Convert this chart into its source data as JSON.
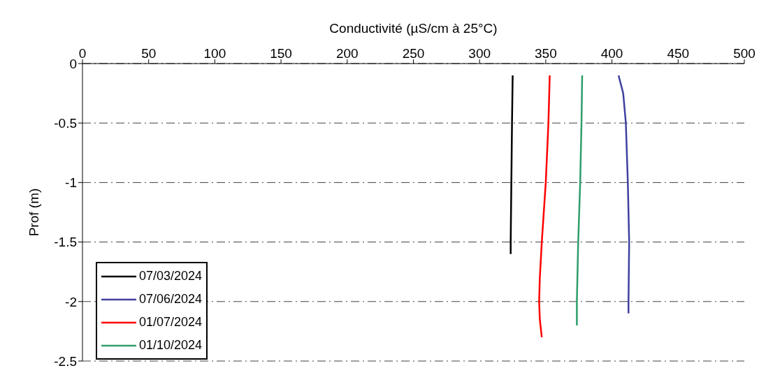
{
  "chart_data": {
    "type": "line",
    "xlabel": "Conductivité (µS/cm à 25°C)",
    "ylabel": "Prof (m)",
    "xlim": [
      0,
      500
    ],
    "xticks": [
      0,
      50,
      100,
      150,
      200,
      250,
      300,
      350,
      400,
      450,
      500
    ],
    "ylim": [
      -2.5,
      0
    ],
    "yticks": [
      -2.5,
      -2,
      -1.5,
      -1,
      -0.5,
      0
    ],
    "grid": "y",
    "legend": "bottom left",
    "marker": "none",
    "line_style": "solid",
    "series": [
      {
        "name": "07/03/2024",
        "color": "#000000",
        "x": [
          325,
          324.5,
          324,
          323.5,
          323.5
        ],
        "values": [
          -0.1,
          -0.5,
          -1,
          -1.5,
          -1.6
        ]
      },
      {
        "name": "07/06/2024",
        "color": "#4040a0",
        "x": [
          405,
          408.5,
          410.5,
          412,
          413,
          412.5,
          412.5
        ],
        "values": [
          -0.1,
          -0.25,
          -0.5,
          -1,
          -1.5,
          -2,
          -2.1
        ]
      },
      {
        "name": "01/07/2024",
        "color": "#ff0000",
        "x": [
          353,
          352,
          350,
          347,
          345.5,
          345,
          345.5,
          347
        ],
        "values": [
          -0.1,
          -0.5,
          -1,
          -1.5,
          -1.8,
          -2,
          -2.15,
          -2.3
        ]
      },
      {
        "name": "01/10/2024",
        "color": "#2e9e6a",
        "x": [
          377.5,
          377,
          376,
          374.5,
          373.5,
          373.5
        ],
        "values": [
          -0.1,
          -0.5,
          -1,
          -1.5,
          -2,
          -2.2
        ]
      }
    ]
  }
}
